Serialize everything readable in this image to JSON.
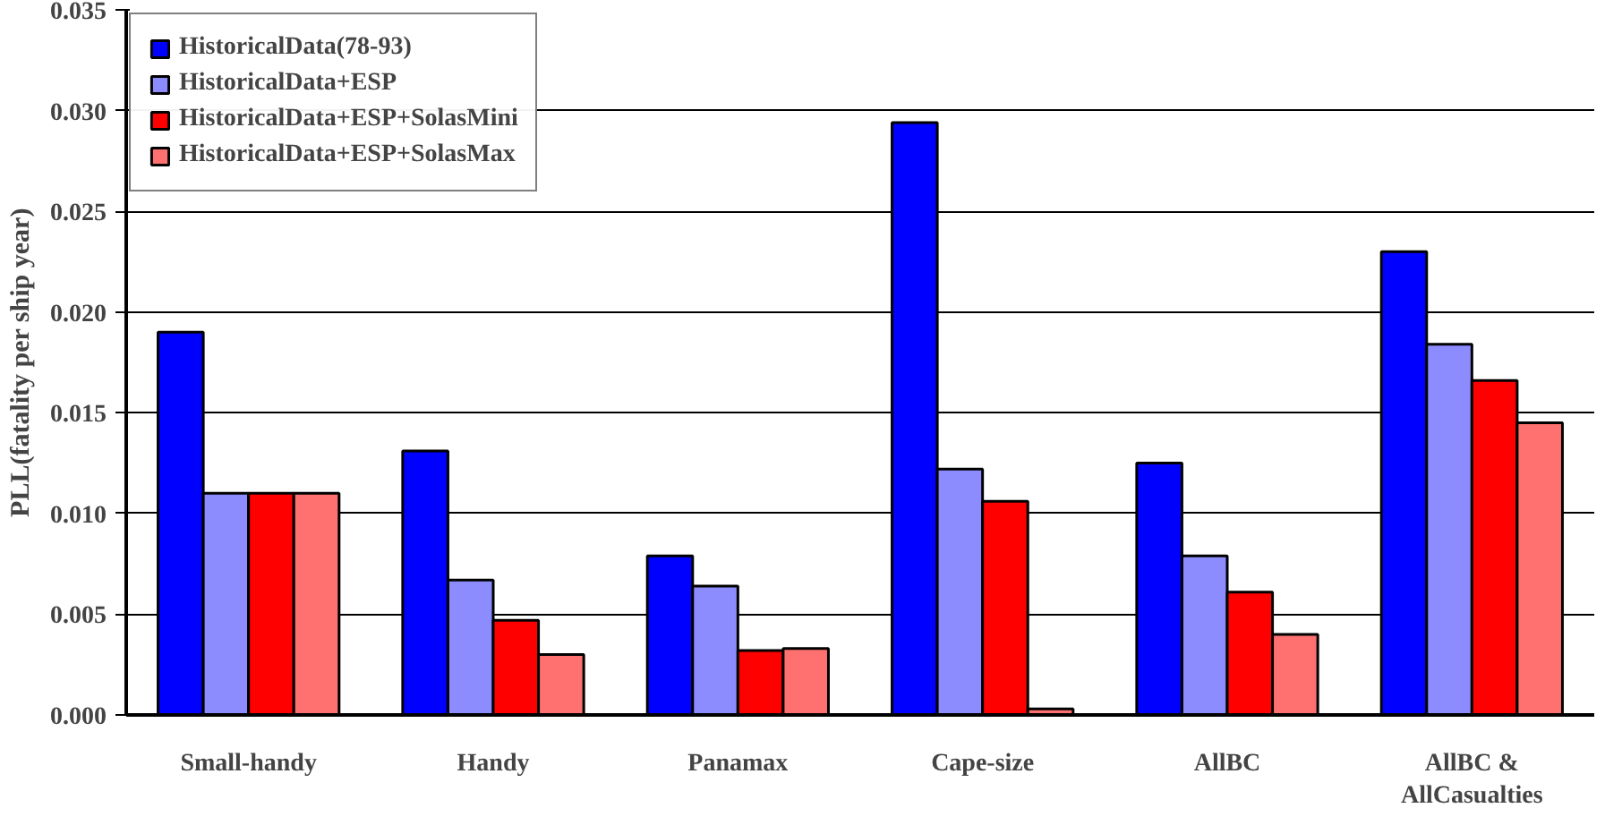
{
  "chart_data": {
    "type": "bar",
    "ylabel": "PLL(fatality per ship year)",
    "categories": [
      "Small-handy",
      "Handy",
      "Panamax",
      "Cape-size",
      "AllBC",
      "AllBC &\nAllCasualties"
    ],
    "series": [
      {
        "name": "HistoricalData(78-93)",
        "color": "#0000ff",
        "values": [
          0.019,
          0.0131,
          0.0079,
          0.0294,
          0.0125,
          0.023
        ]
      },
      {
        "name": "HistoricalData+ESP",
        "color": "#8c8cff",
        "values": [
          0.011,
          0.0067,
          0.0064,
          0.0122,
          0.0079,
          0.0184
        ]
      },
      {
        "name": "HistoricalData+ESP+SolasMini",
        "color": "#ff0000",
        "values": [
          0.011,
          0.0047,
          0.0032,
          0.0106,
          0.0061,
          0.0166
        ]
      },
      {
        "name": "HistoricalData+ESP+SolasMax",
        "color": "#ff7070",
        "values": [
          0.011,
          0.003,
          0.0033,
          0.0003,
          0.004,
          0.0145
        ]
      }
    ],
    "ylim": [
      0,
      0.035
    ],
    "yticks": [
      {
        "value": 0,
        "label": "0.000"
      },
      {
        "value": 0.005,
        "label": "0.005"
      },
      {
        "value": 0.01,
        "label": "0.010"
      },
      {
        "value": 0.015,
        "label": "0.015"
      },
      {
        "value": 0.02,
        "label": "0.020"
      },
      {
        "value": 0.025,
        "label": "0.025"
      },
      {
        "value": 0.03,
        "label": "0.030"
      },
      {
        "value": 0.035,
        "label": "0.035"
      }
    ],
    "grid": "y",
    "legend": "top left"
  }
}
